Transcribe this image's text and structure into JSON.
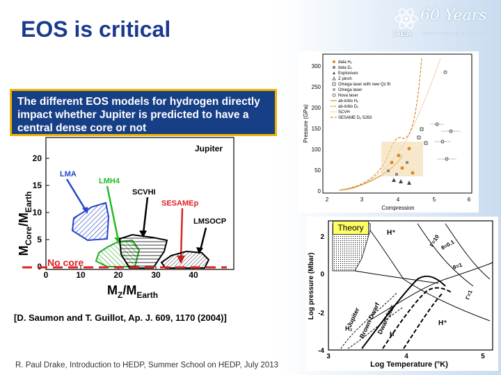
{
  "slide": {
    "title": "EOS is critical",
    "footer": "R. Paul Drake,  Introduction to HEDP, Summer School on HEDP,  July 2013"
  },
  "logo": {
    "years": "60 Years",
    "org": "IAEA",
    "tagline": "Atoms for Peace and Development"
  },
  "callout": {
    "text": "The different EOS models for hydrogen directly impact whether Jupiter is predicted to have a central dense core or not"
  },
  "left_figure": {
    "ylabel_main": "M",
    "ylabel_sub1": "Core",
    "ylabel_mid": "/M",
    "ylabel_sub2": "Earth",
    "xlabel_main": "M",
    "xlabel_sub1": "Z",
    "xlabel_mid": "/M",
    "xlabel_sub2": "Earth",
    "yticks": [
      "20",
      "15",
      "10",
      "5",
      "0"
    ],
    "xticks": [
      "0",
      "10",
      "20",
      "30",
      "40"
    ],
    "labels": {
      "jupiter": "Jupiter",
      "lma": "LMA",
      "lmh4": "LMH4",
      "scvh": "SCVHI",
      "sesame": "SESAMEp",
      "lmsocp": "LMSOCP",
      "no_core": "No core"
    },
    "colors": {
      "lma": "#2244cc",
      "lmh4": "#22bb22",
      "sesame": "#dd2222",
      "no_core": "#dd2222"
    },
    "reference": "[D. Saumon and T. Guillot, Ap. J. 609, 1170 (2004)]"
  },
  "top_right_figure": {
    "ylabel": "Pressure (GPa)",
    "xlabel": "Compression",
    "yticks": [
      "300",
      "250",
      "200",
      "150",
      "100",
      "50",
      "0"
    ],
    "xticks": [
      "2",
      "3",
      "4",
      "5",
      "6"
    ],
    "legend": [
      "data H₂",
      "data D₂",
      "Explosives",
      "Z pinch",
      "Omega laser with new Qz fit",
      "Omega laser",
      "Nova laser",
      "ab-initio H₂",
      "ab-initio D₂",
      "SCVH",
      "SESAME D₂ 5263"
    ]
  },
  "bottom_right_figure": {
    "badge": "Theory",
    "ylabel": "Log pressure (Mbar)",
    "xlabel": "Log Temperature (°K)",
    "yticks": [
      "2",
      "0",
      "-2",
      "-4"
    ],
    "xticks": [
      "3",
      "4",
      "5"
    ],
    "labels": {
      "hplus_top": "H⁺",
      "hplus_bot": "H⁺",
      "h2": "H₂",
      "h": "H",
      "theta_01": "θ=0.1",
      "theta_1": "θ=1",
      "gamma_10": "Γ=10",
      "gamma_1": "Γ=1",
      "jupiter": "Jupiter",
      "brown_dwarf": "Brown Dwarf",
      "dwarf_star": "Dwarf Star"
    }
  }
}
